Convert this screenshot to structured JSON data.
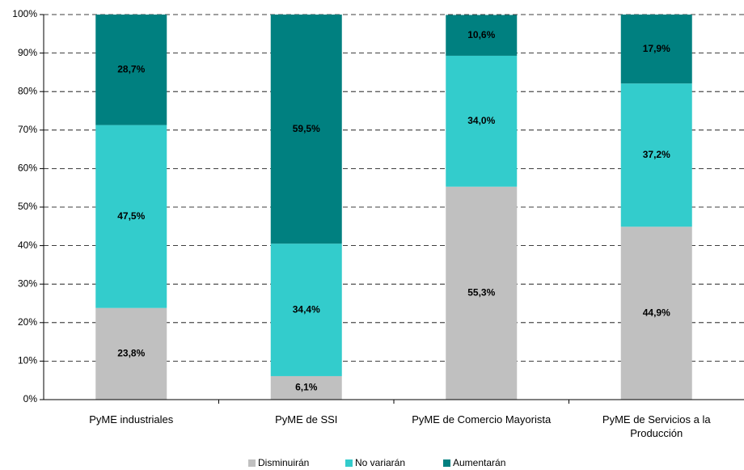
{
  "chart_data": {
    "type": "stacked_bar",
    "categories": [
      "PyME industriales",
      "PyME de SSI",
      "PyME de Comercio Mayorista",
      "PyME de Servicios a la Producción"
    ],
    "series": [
      {
        "name": "Disminuirán",
        "color": "#c0c0c0",
        "values": [
          23.8,
          6.1,
          55.3,
          44.9
        ],
        "value_labels": [
          "23,8%",
          "6,1%",
          "55,3%",
          "44,9%"
        ]
      },
      {
        "name": "No variarán",
        "color": "#33cccc",
        "values": [
          47.5,
          34.4,
          34.0,
          37.2
        ],
        "value_labels": [
          "47,5%",
          "34,4%",
          "34,0%",
          "37,2%"
        ]
      },
      {
        "name": "Aumentarán",
        "color": "#008080",
        "values": [
          28.7,
          59.5,
          10.6,
          17.9
        ],
        "value_labels": [
          "28,7%",
          "59,5%",
          "10,6%",
          "17,9%"
        ]
      }
    ],
    "ylim": [
      0,
      100
    ],
    "yticks": [
      {
        "value": 0,
        "label": "0%"
      },
      {
        "value": 10,
        "label": "10%"
      },
      {
        "value": 20,
        "label": "20%"
      },
      {
        "value": 30,
        "label": "30%"
      },
      {
        "value": 40,
        "label": "40%"
      },
      {
        "value": 50,
        "label": "50%"
      },
      {
        "value": 60,
        "label": "60%"
      },
      {
        "value": 70,
        "label": "70%"
      },
      {
        "value": 80,
        "label": "80%"
      },
      {
        "value": 90,
        "label": "90%"
      },
      {
        "value": 100,
        "label": "100%"
      }
    ],
    "grid": true,
    "legend": "bottom"
  }
}
